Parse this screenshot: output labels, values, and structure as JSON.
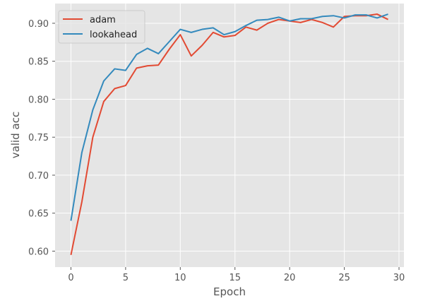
{
  "chart_data": {
    "type": "line",
    "title": "",
    "xlabel": "Epoch",
    "ylabel": "valid acc",
    "xlim": [
      -1.45,
      30.45
    ],
    "ylim": [
      0.579,
      0.926
    ],
    "xticks": [
      0,
      5,
      10,
      15,
      20,
      25,
      30
    ],
    "yticks": [
      0.6,
      0.65,
      0.7,
      0.75,
      0.8,
      0.85,
      0.9
    ],
    "ytick_labels": [
      "0.60",
      "0.65",
      "0.70",
      "0.75",
      "0.80",
      "0.85",
      "0.90"
    ],
    "grid": true,
    "legend_position": "top-left",
    "x": [
      0,
      1,
      2,
      3,
      4,
      5,
      6,
      7,
      8,
      9,
      10,
      11,
      12,
      13,
      14,
      15,
      16,
      17,
      18,
      19,
      20,
      21,
      22,
      23,
      24,
      25,
      26,
      27,
      28,
      29
    ],
    "series": [
      {
        "name": "adam",
        "color": "#e24a33",
        "values": [
          0.595,
          0.665,
          0.75,
          0.797,
          0.814,
          0.818,
          0.841,
          0.844,
          0.845,
          0.866,
          0.885,
          0.857,
          0.871,
          0.888,
          0.882,
          0.884,
          0.895,
          0.891,
          0.9,
          0.905,
          0.903,
          0.901,
          0.905,
          0.901,
          0.895,
          0.909,
          0.91,
          0.91,
          0.912,
          0.905
        ]
      },
      {
        "name": "lookahead",
        "color": "#348abd",
        "values": [
          0.64,
          0.73,
          0.786,
          0.824,
          0.84,
          0.838,
          0.859,
          0.867,
          0.86,
          0.876,
          0.892,
          0.888,
          0.892,
          0.894,
          0.885,
          0.889,
          0.897,
          0.904,
          0.905,
          0.908,
          0.903,
          0.906,
          0.906,
          0.909,
          0.91,
          0.907,
          0.911,
          0.911,
          0.907,
          0.912
        ]
      }
    ]
  }
}
